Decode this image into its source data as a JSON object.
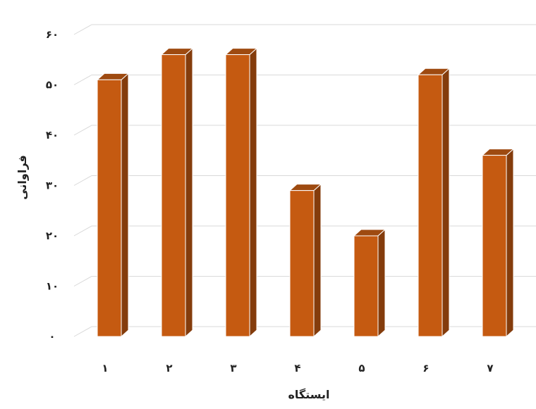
{
  "chart_data": {
    "type": "bar",
    "title": "",
    "xlabel": "ایستگاه",
    "ylabel": "فراوانی",
    "categories": [
      "۱",
      "۲",
      "۳",
      "۴",
      "۵",
      "۶",
      "۷"
    ],
    "series": [
      {
        "values": [
          51,
          56,
          56,
          29,
          20,
          52,
          36
        ]
      }
    ],
    "ylim": [
      0,
      60
    ],
    "yticks": [
      0,
      10,
      20,
      30,
      40,
      50,
      60
    ],
    "ytick_labels": [
      "۰",
      "۱۰",
      "۲۰",
      "۳۰",
      "۴۰",
      "۵۰",
      "۶۰"
    ],
    "grid": true,
    "style": "3d-column",
    "colors": {
      "bar_front": "#c55a11",
      "bar_side": "#843c0c",
      "bar_top": "#9e4a10",
      "grid": "#d9d9d9"
    }
  }
}
